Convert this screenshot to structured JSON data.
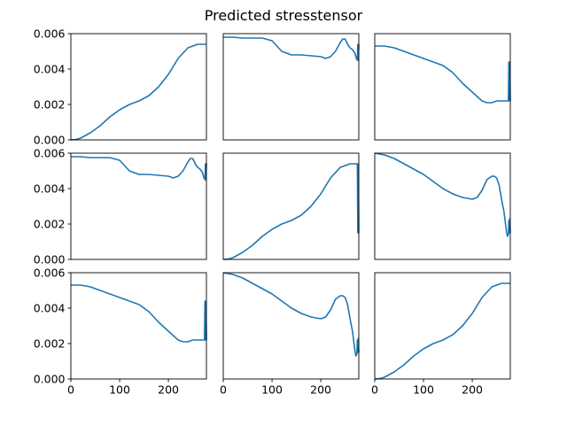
{
  "figure": {
    "title": "Predicted stresstensor"
  },
  "colors": {
    "line": "#1f77b4",
    "axes": "#000000",
    "background": "#ffffff"
  },
  "chart_data": [
    {
      "type": "line",
      "row": 0,
      "col": 0,
      "xlim": [
        0,
        278
      ],
      "ylim": [
        0,
        0.006
      ],
      "y_ticks_shown": true,
      "x_ticks_shown": false,
      "ytick_labels": [
        "0.000",
        "0.002",
        "0.004",
        "0.006"
      ],
      "xtick_labels": [],
      "x": [
        0,
        10,
        20,
        40,
        60,
        80,
        100,
        120,
        140,
        160,
        180,
        200,
        220,
        240,
        260,
        270,
        278
      ],
      "y": [
        0,
        2e-05,
        0.0001,
        0.0004,
        0.0008,
        0.0013,
        0.0017,
        0.002,
        0.0022,
        0.0025,
        0.003,
        0.0037,
        0.0046,
        0.0052,
        0.0054,
        0.0054,
        0.0054
      ]
    },
    {
      "type": "line",
      "row": 0,
      "col": 1,
      "xlim": [
        0,
        278
      ],
      "ylim": [
        0,
        0.006
      ],
      "y_ticks_shown": false,
      "x_ticks_shown": false,
      "ytick_labels": [],
      "xtick_labels": [],
      "x": [
        0,
        20,
        40,
        60,
        80,
        100,
        120,
        140,
        160,
        180,
        200,
        210,
        220,
        230,
        240,
        245,
        250,
        255,
        260,
        265,
        270,
        273,
        275,
        276,
        277,
        278
      ],
      "y": [
        0.0058,
        0.0058,
        0.00575,
        0.00575,
        0.00575,
        0.0056,
        0.005,
        0.0048,
        0.0048,
        0.00475,
        0.0047,
        0.0046,
        0.0047,
        0.005,
        0.0055,
        0.0057,
        0.0057,
        0.0054,
        0.0052,
        0.0051,
        0.0049,
        0.0046,
        0.0045,
        0.0054,
        0.0045,
        0.0054
      ]
    },
    {
      "type": "line",
      "row": 0,
      "col": 2,
      "xlim": [
        0,
        278
      ],
      "ylim": [
        0,
        0.006
      ],
      "y_ticks_shown": false,
      "x_ticks_shown": false,
      "ytick_labels": [],
      "xtick_labels": [],
      "x": [
        0,
        20,
        40,
        60,
        80,
        100,
        120,
        140,
        160,
        180,
        200,
        220,
        230,
        240,
        250,
        260,
        270,
        274,
        275,
        276,
        277,
        278
      ],
      "y": [
        0.0053,
        0.0053,
        0.0052,
        0.005,
        0.0048,
        0.0046,
        0.0044,
        0.0042,
        0.0038,
        0.0032,
        0.0027,
        0.0022,
        0.0021,
        0.0021,
        0.0022,
        0.0022,
        0.0022,
        0.0022,
        0.0044,
        0.0022,
        0.0044,
        0.0022
      ]
    },
    {
      "type": "line",
      "row": 1,
      "col": 0,
      "xlim": [
        0,
        278
      ],
      "ylim": [
        0,
        0.006
      ],
      "y_ticks_shown": true,
      "x_ticks_shown": false,
      "ytick_labels": [
        "0.000",
        "0.002",
        "0.004",
        "0.006"
      ],
      "xtick_labels": [],
      "x": [
        0,
        20,
        40,
        60,
        80,
        100,
        120,
        140,
        160,
        180,
        200,
        210,
        220,
        230,
        240,
        245,
        250,
        255,
        260,
        265,
        270,
        273,
        275,
        276,
        277,
        278
      ],
      "y": [
        0.0058,
        0.0058,
        0.00575,
        0.00575,
        0.00575,
        0.0056,
        0.005,
        0.0048,
        0.0048,
        0.00475,
        0.0047,
        0.0046,
        0.0047,
        0.005,
        0.0055,
        0.0057,
        0.0057,
        0.0054,
        0.0052,
        0.0051,
        0.0049,
        0.0046,
        0.0045,
        0.0054,
        0.0045,
        0.0054
      ]
    },
    {
      "type": "line",
      "row": 1,
      "col": 1,
      "xlim": [
        0,
        278
      ],
      "ylim": [
        0,
        0.006
      ],
      "y_ticks_shown": false,
      "x_ticks_shown": false,
      "ytick_labels": [],
      "xtick_labels": [],
      "x": [
        0,
        10,
        20,
        40,
        60,
        80,
        100,
        120,
        140,
        160,
        180,
        200,
        220,
        240,
        260,
        270,
        275,
        276,
        277,
        278
      ],
      "y": [
        0,
        2e-05,
        0.0001,
        0.0004,
        0.0008,
        0.0013,
        0.0017,
        0.002,
        0.0022,
        0.0025,
        0.003,
        0.0037,
        0.0046,
        0.0052,
        0.0054,
        0.0054,
        0.0054,
        0.0015,
        0.0054,
        0.0015
      ]
    },
    {
      "type": "line",
      "row": 1,
      "col": 2,
      "xlim": [
        0,
        278
      ],
      "ylim": [
        0,
        0.006
      ],
      "y_ticks_shown": false,
      "x_ticks_shown": false,
      "ytick_labels": [],
      "xtick_labels": [],
      "x": [
        0,
        20,
        40,
        60,
        80,
        100,
        120,
        140,
        160,
        180,
        200,
        210,
        220,
        230,
        240,
        245,
        250,
        255,
        260,
        265,
        270,
        272,
        274,
        275,
        276,
        277,
        278
      ],
      "y": [
        0.006,
        0.0059,
        0.0057,
        0.0054,
        0.0051,
        0.0048,
        0.0044,
        0.004,
        0.0037,
        0.0035,
        0.0034,
        0.0035,
        0.0039,
        0.0045,
        0.0047,
        0.0047,
        0.0046,
        0.0042,
        0.0034,
        0.0027,
        0.0016,
        0.0013,
        0.0014,
        0.0022,
        0.0015,
        0.0023,
        0.0015
      ]
    },
    {
      "type": "line",
      "row": 2,
      "col": 0,
      "xlim": [
        0,
        278
      ],
      "ylim": [
        0,
        0.006
      ],
      "y_ticks_shown": true,
      "x_ticks_shown": true,
      "ytick_labels": [
        "0.000",
        "0.002",
        "0.004",
        "0.006"
      ],
      "xtick_labels": [
        "0",
        "100",
        "200"
      ],
      "x": [
        0,
        20,
        40,
        60,
        80,
        100,
        120,
        140,
        160,
        180,
        200,
        220,
        230,
        240,
        250,
        260,
        270,
        274,
        275,
        276,
        277,
        278
      ],
      "y": [
        0.0053,
        0.0053,
        0.0052,
        0.005,
        0.0048,
        0.0046,
        0.0044,
        0.0042,
        0.0038,
        0.0032,
        0.0027,
        0.0022,
        0.0021,
        0.0021,
        0.0022,
        0.0022,
        0.0022,
        0.0022,
        0.0044,
        0.0022,
        0.0044,
        0.0022
      ]
    },
    {
      "type": "line",
      "row": 2,
      "col": 1,
      "xlim": [
        0,
        278
      ],
      "ylim": [
        0,
        0.006
      ],
      "y_ticks_shown": false,
      "x_ticks_shown": true,
      "ytick_labels": [],
      "xtick_labels": [
        "0",
        "100",
        "200"
      ],
      "x": [
        0,
        20,
        40,
        60,
        80,
        100,
        120,
        140,
        160,
        180,
        200,
        210,
        220,
        230,
        240,
        245,
        250,
        255,
        260,
        265,
        270,
        272,
        274,
        275,
        276,
        277,
        278
      ],
      "y": [
        0.006,
        0.0059,
        0.0057,
        0.0054,
        0.0051,
        0.0048,
        0.0044,
        0.004,
        0.0037,
        0.0035,
        0.0034,
        0.0035,
        0.0039,
        0.0045,
        0.0047,
        0.0047,
        0.0046,
        0.0042,
        0.0034,
        0.0027,
        0.0016,
        0.0013,
        0.0014,
        0.0022,
        0.0015,
        0.0023,
        0.0015
      ]
    },
    {
      "type": "line",
      "row": 2,
      "col": 2,
      "xlim": [
        0,
        278
      ],
      "ylim": [
        0,
        0.006
      ],
      "y_ticks_shown": false,
      "x_ticks_shown": true,
      "ytick_labels": [],
      "xtick_labels": [
        "0",
        "100",
        "200"
      ],
      "x": [
        0,
        10,
        20,
        40,
        60,
        80,
        100,
        120,
        140,
        160,
        180,
        200,
        220,
        240,
        260,
        270,
        278
      ],
      "y": [
        0,
        2e-05,
        0.0001,
        0.0004,
        0.0008,
        0.0013,
        0.0017,
        0.002,
        0.0022,
        0.0025,
        0.003,
        0.0037,
        0.0046,
        0.0052,
        0.0054,
        0.0054,
        0.0054
      ]
    }
  ]
}
